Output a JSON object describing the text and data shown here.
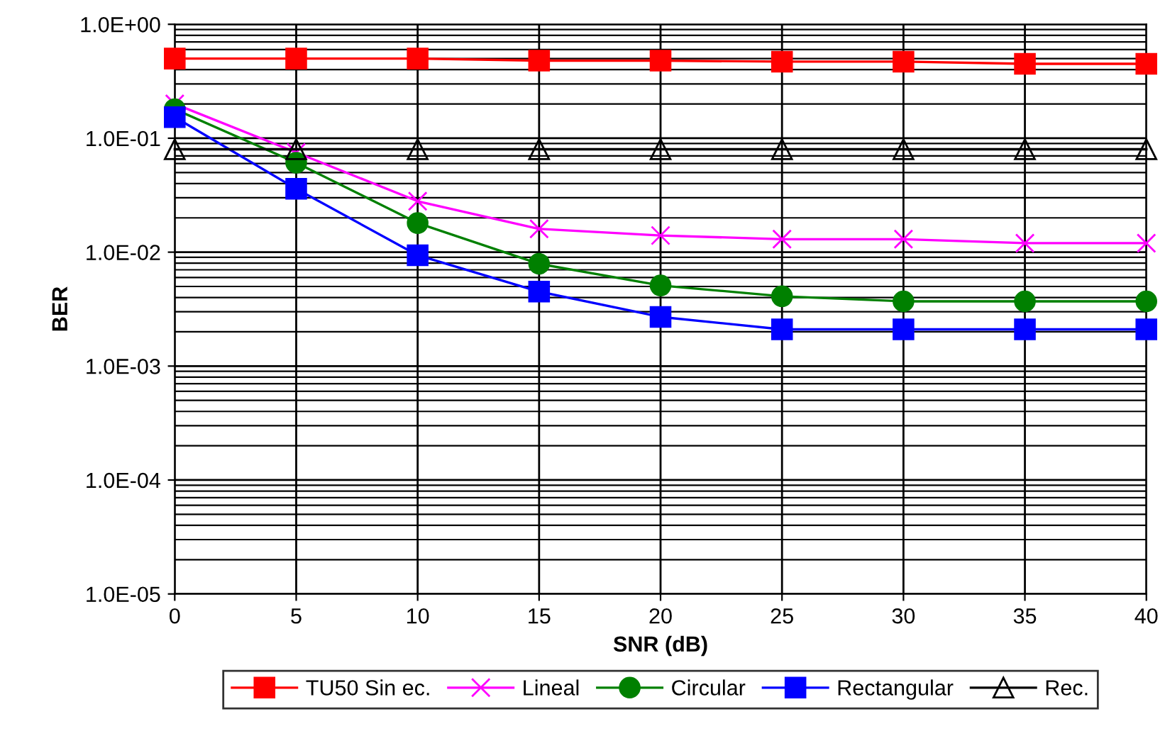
{
  "chart_data": {
    "type": "line",
    "xlabel": "SNR (dB)",
    "ylabel": "BER",
    "log": "y",
    "grid": true,
    "legend": "bottom",
    "line_style": "solid",
    "x": [
      0,
      5,
      10,
      15,
      20,
      25,
      30,
      35,
      40
    ],
    "xlim": [
      0,
      40
    ],
    "xticks": [
      0,
      5,
      10,
      15,
      20,
      25,
      30,
      35,
      40
    ],
    "ylim": [
      1e-05,
      1
    ],
    "yticks": [
      {
        "value": 1e-05,
        "label": "1.0E-05"
      },
      {
        "value": 0.0001,
        "label": "1.0E-04"
      },
      {
        "value": 0.001,
        "label": "1.0E-03"
      },
      {
        "value": 0.01,
        "label": "1.0E-02"
      },
      {
        "value": 0.1,
        "label": "1.0E-01"
      },
      {
        "value": 1,
        "label": "1.0E+00"
      }
    ],
    "series": [
      {
        "name": "TU50 Sin ec.",
        "color": "#ff0000",
        "marker": "square",
        "values": [
          0.5,
          0.5,
          0.5,
          0.48,
          0.48,
          0.47,
          0.47,
          0.45,
          0.45
        ]
      },
      {
        "name": "Lineal",
        "color": "#ff00ff",
        "marker": "cross",
        "values": [
          0.2,
          0.075,
          0.028,
          0.016,
          0.014,
          0.013,
          0.013,
          0.012,
          0.012
        ]
      },
      {
        "name": "Circular",
        "color": "#008000",
        "marker": "circle",
        "values": [
          0.18,
          0.061,
          0.018,
          0.0079,
          0.0051,
          0.0041,
          0.0037,
          0.0037,
          0.0037
        ]
      },
      {
        "name": "Rectangular",
        "color": "#0000ff",
        "marker": "square",
        "values": [
          0.153,
          0.036,
          0.0094,
          0.0045,
          0.0027,
          0.0021,
          0.0021,
          0.0021,
          0.0021
        ]
      },
      {
        "name": "Rec.",
        "color": "#000000",
        "marker": "triangle",
        "values": [
          0.08,
          0.08,
          0.08,
          0.08,
          0.08,
          0.08,
          0.08,
          0.08,
          0.08
        ]
      }
    ]
  }
}
